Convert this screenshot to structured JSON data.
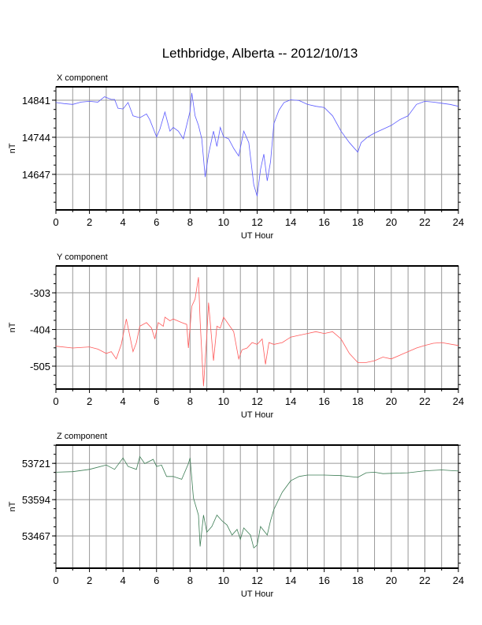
{
  "title": "Lethbridge, Alberta -- 2012/10/13",
  "chart_data": [
    {
      "type": "line",
      "title": "X component",
      "xlabel": "UT Hour",
      "ylabel": "nT",
      "xlim": [
        0,
        24
      ],
      "ylim": [
        14554,
        14876
      ],
      "xticks": [
        0,
        2,
        4,
        6,
        8,
        10,
        12,
        14,
        16,
        18,
        20,
        22,
        24
      ],
      "yticks": [
        14647,
        14744,
        14841
      ],
      "grid": true,
      "color": "#5a5aff",
      "x": [
        0,
        0.5,
        1,
        1.5,
        2,
        2.5,
        2.9,
        3.3,
        3.5,
        3.7,
        4,
        4.3,
        4.6,
        5,
        5.4,
        5.6,
        6,
        6.2,
        6.5,
        6.8,
        7,
        7.3,
        7.6,
        8,
        8.1,
        8.3,
        8.5,
        8.7,
        8.9,
        9.1,
        9.4,
        9.6,
        9.8,
        10,
        10.3,
        10.6,
        10.9,
        11.2,
        11.5,
        11.8,
        12,
        12.2,
        12.4,
        12.6,
        12.8,
        13,
        13.3,
        13.6,
        14,
        14.5,
        15,
        15.5,
        16,
        16.5,
        17,
        17.5,
        18,
        18.2,
        18.6,
        19,
        19.5,
        20,
        20.5,
        21,
        21.5,
        22,
        22.5,
        23,
        23.5,
        24
      ],
      "y": [
        14835,
        14832,
        14830,
        14836,
        14838,
        14836,
        14850,
        14843,
        14843,
        14820,
        14818,
        14835,
        14800,
        14795,
        14805,
        14790,
        14745,
        14765,
        14810,
        14760,
        14770,
        14760,
        14740,
        14812,
        14860,
        14800,
        14775,
        14740,
        14640,
        14700,
        14760,
        14720,
        14770,
        14745,
        14740,
        14715,
        14695,
        14760,
        14730,
        14620,
        14590,
        14660,
        14700,
        14630,
        14680,
        14780,
        14815,
        14835,
        14842,
        14840,
        14830,
        14825,
        14822,
        14800,
        14760,
        14730,
        14705,
        14730,
        14745,
        14755,
        14765,
        14775,
        14790,
        14800,
        14830,
        14838,
        14836,
        14833,
        14830,
        14825
      ]
    },
    {
      "type": "line",
      "title": "Y component",
      "xlabel": "UT Hour",
      "ylabel": "nT",
      "xlim": [
        0,
        24
      ],
      "ylim": [
        -568,
        -229
      ],
      "xticks": [
        0,
        2,
        4,
        6,
        8,
        10,
        12,
        14,
        16,
        18,
        20,
        22,
        24
      ],
      "yticks": [
        -505,
        -404,
        -303
      ],
      "grid": true,
      "color": "#ff5a5a",
      "x": [
        0,
        1,
        2,
        2.5,
        3,
        3.3,
        3.6,
        3.9,
        4.2,
        4.6,
        4.8,
        5,
        5.4,
        5.7,
        5.9,
        6.1,
        6.4,
        6.5,
        6.8,
        7,
        7.5,
        7.8,
        7.9,
        8.1,
        8.3,
        8.5,
        8.6,
        8.8,
        9,
        9.1,
        9.4,
        9.6,
        9.8,
        10,
        10.3,
        10.6,
        10.9,
        11.1,
        11.4,
        11.7,
        12,
        12.3,
        12.5,
        12.7,
        13,
        13.5,
        14,
        14.5,
        15,
        15.5,
        16,
        16.5,
        17,
        17.5,
        18,
        18.5,
        19,
        19.5,
        20,
        20.5,
        21,
        21.5,
        22,
        22.5,
        23,
        24
      ],
      "y": [
        -450,
        -455,
        -452,
        -458,
        -470,
        -465,
        -485,
        -445,
        -375,
        -465,
        -440,
        -395,
        -385,
        -400,
        -430,
        -385,
        -395,
        -370,
        -380,
        -375,
        -385,
        -390,
        -455,
        -340,
        -320,
        -260,
        -380,
        -560,
        -420,
        -330,
        -490,
        -395,
        -400,
        -370,
        -390,
        -410,
        -485,
        -460,
        -455,
        -440,
        -445,
        -430,
        -500,
        -440,
        -445,
        -440,
        -425,
        -420,
        -415,
        -410,
        -415,
        -410,
        -430,
        -470,
        -495,
        -495,
        -490,
        -480,
        -485,
        -475,
        -465,
        -455,
        -448,
        -442,
        -440,
        -448
      ]
    },
    {
      "type": "line",
      "title": "Z component",
      "xlabel": "UT Hour",
      "ylabel": "nT",
      "xlim": [
        0,
        24
      ],
      "ylim": [
        53354,
        53785
      ],
      "xticks": [
        0,
        2,
        4,
        6,
        8,
        10,
        12,
        14,
        16,
        18,
        20,
        22,
        24
      ],
      "yticks": [
        53467,
        53594,
        53721
      ],
      "grid": true,
      "color": "#3d7d55",
      "x": [
        0,
        1,
        2,
        3,
        3.5,
        4,
        4.3,
        4.8,
        5,
        5.3,
        5.8,
        6,
        6.3,
        6.6,
        7,
        7.5,
        7.9,
        8,
        8.2,
        8.5,
        8.6,
        8.8,
        9,
        9.3,
        9.6,
        9.9,
        10.2,
        10.5,
        10.8,
        11,
        11.2,
        11.6,
        11.8,
        12,
        12.2,
        12.6,
        12.8,
        13,
        13.5,
        14,
        14.5,
        15,
        16,
        17,
        18,
        18.5,
        19,
        19.5,
        20,
        21,
        22,
        23,
        24
      ],
      "y": [
        53690,
        53692,
        53700,
        53715,
        53700,
        53740,
        53710,
        53700,
        53745,
        53720,
        53735,
        53710,
        53715,
        53675,
        53675,
        53665,
        53720,
        53740,
        53600,
        53540,
        53430,
        53540,
        53480,
        53500,
        53540,
        53520,
        53505,
        53470,
        53490,
        53455,
        53495,
        53470,
        53425,
        53435,
        53500,
        53470,
        53520,
        53560,
        53620,
        53660,
        53675,
        53680,
        53680,
        53678,
        53672,
        53688,
        53690,
        53685,
        53686,
        53688,
        53695,
        53698,
        53694
      ]
    }
  ]
}
